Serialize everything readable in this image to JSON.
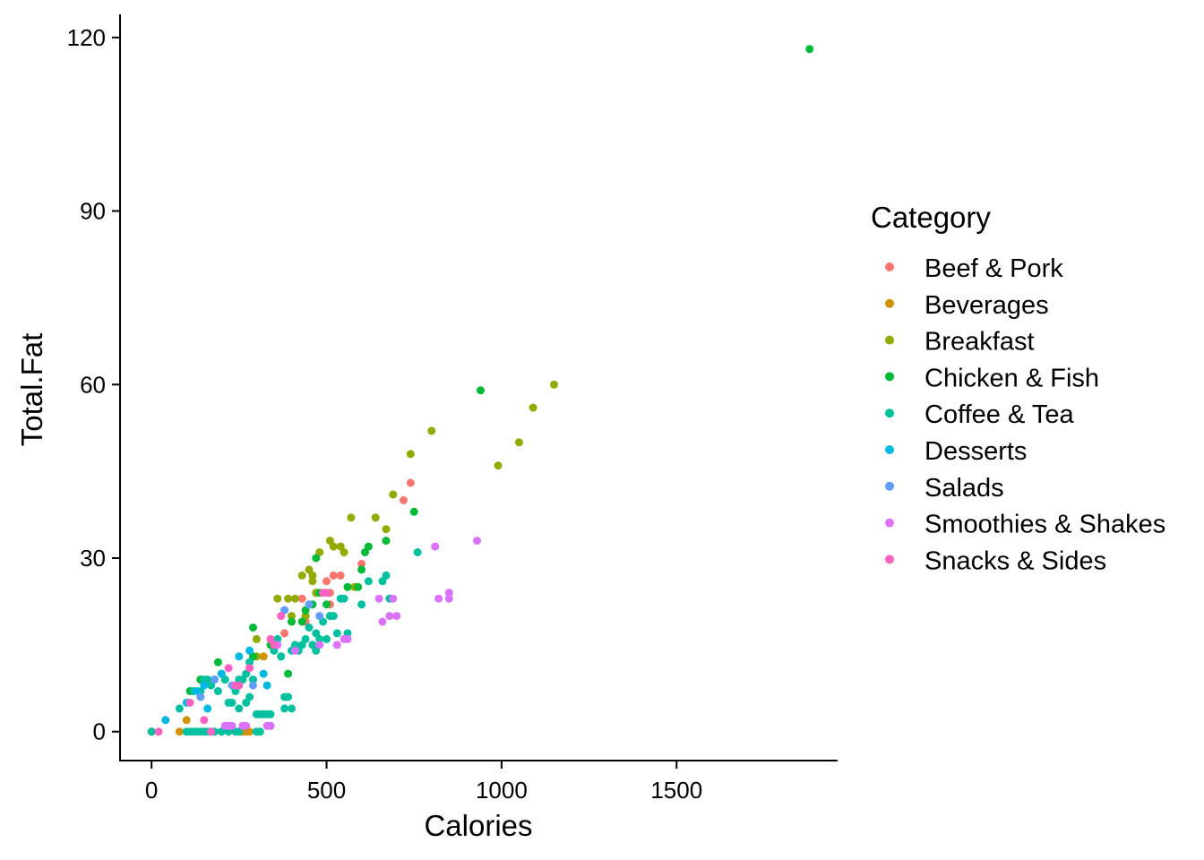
{
  "chart_data": {
    "type": "scatter",
    "xlabel": "Calories",
    "ylabel": "Total.Fat",
    "xlim": [
      -90,
      1960
    ],
    "ylim": [
      -5,
      124
    ],
    "x_ticks": [
      0,
      500,
      1000,
      1500
    ],
    "y_ticks": [
      0,
      30,
      60,
      90,
      120
    ],
    "grid": false,
    "legend": {
      "title": "Category",
      "position": "right"
    },
    "series": [
      {
        "name": "Beef & Pork",
        "color": "#F8766D",
        "points": [
          [
            430,
            23
          ],
          [
            470,
            24
          ],
          [
            500,
            26
          ],
          [
            510,
            24
          ],
          [
            520,
            27
          ],
          [
            540,
            27
          ],
          [
            600,
            29
          ],
          [
            720,
            40
          ],
          [
            740,
            43
          ],
          [
            440,
            19
          ],
          [
            510,
            22
          ],
          [
            380,
            17
          ]
        ]
      },
      {
        "name": "Beverages",
        "color": "#D39200",
        "points": [
          [
            0,
            0
          ],
          [
            80,
            0
          ],
          [
            100,
            2
          ],
          [
            140,
            9
          ],
          [
            150,
            0
          ],
          [
            200,
            0
          ],
          [
            260,
            0
          ],
          [
            270,
            0
          ],
          [
            280,
            0
          ],
          [
            320,
            13
          ]
        ]
      },
      {
        "name": "Breakfast",
        "color": "#93AA00",
        "points": [
          [
            300,
            13
          ],
          [
            360,
            23
          ],
          [
            390,
            23
          ],
          [
            400,
            20
          ],
          [
            430,
            27
          ],
          [
            440,
            20
          ],
          [
            450,
            28
          ],
          [
            460,
            26
          ],
          [
            470,
            24
          ],
          [
            480,
            31
          ],
          [
            510,
            33
          ],
          [
            520,
            32
          ],
          [
            540,
            32
          ],
          [
            550,
            31
          ],
          [
            570,
            37
          ],
          [
            580,
            25
          ],
          [
            640,
            37
          ],
          [
            670,
            35
          ],
          [
            690,
            41
          ],
          [
            740,
            48
          ],
          [
            800,
            52
          ],
          [
            990,
            46
          ],
          [
            1050,
            50
          ],
          [
            1090,
            56
          ],
          [
            1150,
            60
          ],
          [
            300,
            16
          ],
          [
            410,
            23
          ],
          [
            460,
            27
          ]
        ]
      },
      {
        "name": "Chicken & Fish",
        "color": "#00BA38",
        "points": [
          [
            1880,
            118
          ],
          [
            940,
            59
          ],
          [
            750,
            38
          ],
          [
            670,
            33
          ],
          [
            620,
            32
          ],
          [
            610,
            31
          ],
          [
            600,
            28
          ],
          [
            590,
            25
          ],
          [
            560,
            25
          ],
          [
            510,
            20
          ],
          [
            500,
            22
          ],
          [
            480,
            24
          ],
          [
            470,
            30
          ],
          [
            460,
            22
          ],
          [
            440,
            21
          ],
          [
            430,
            19
          ],
          [
            400,
            19
          ],
          [
            390,
            10
          ],
          [
            370,
            13
          ],
          [
            340,
            15
          ],
          [
            290,
            18
          ],
          [
            290,
            13
          ],
          [
            190,
            12
          ],
          [
            140,
            9
          ],
          [
            110,
            7
          ]
        ]
      },
      {
        "name": "Coffee & Tea",
        "color": "#00C19F",
        "points": [
          [
            0,
            0
          ],
          [
            80,
            4
          ],
          [
            100,
            0
          ],
          [
            110,
            0
          ],
          [
            120,
            0
          ],
          [
            130,
            0
          ],
          [
            140,
            0
          ],
          [
            150,
            0
          ],
          [
            160,
            0
          ],
          [
            170,
            0
          ],
          [
            180,
            0
          ],
          [
            200,
            0
          ],
          [
            220,
            0
          ],
          [
            240,
            0
          ],
          [
            250,
            0
          ],
          [
            300,
            0
          ],
          [
            310,
            0
          ],
          [
            340,
            1
          ],
          [
            120,
            7
          ],
          [
            140,
            7
          ],
          [
            150,
            9
          ],
          [
            160,
            9
          ],
          [
            170,
            8
          ],
          [
            180,
            9
          ],
          [
            190,
            7
          ],
          [
            200,
            10
          ],
          [
            210,
            9
          ],
          [
            220,
            5
          ],
          [
            230,
            5
          ],
          [
            240,
            7
          ],
          [
            250,
            9
          ],
          [
            260,
            9
          ],
          [
            270,
            10
          ],
          [
            280,
            12
          ],
          [
            290,
            9
          ],
          [
            300,
            3
          ],
          [
            310,
            3
          ],
          [
            320,
            3
          ],
          [
            330,
            3
          ],
          [
            340,
            3
          ],
          [
            350,
            14
          ],
          [
            360,
            16
          ],
          [
            370,
            13
          ],
          [
            380,
            4
          ],
          [
            390,
            6
          ],
          [
            400,
            4
          ],
          [
            410,
            15
          ],
          [
            420,
            14
          ],
          [
            430,
            15
          ],
          [
            440,
            16
          ],
          [
            450,
            18
          ],
          [
            460,
            15
          ],
          [
            470,
            17
          ],
          [
            480,
            16
          ],
          [
            490,
            19
          ],
          [
            500,
            16
          ],
          [
            510,
            20
          ],
          [
            520,
            20
          ],
          [
            530,
            17
          ],
          [
            540,
            23
          ],
          [
            550,
            23
          ],
          [
            560,
            17
          ],
          [
            600,
            22
          ],
          [
            620,
            26
          ],
          [
            660,
            26
          ],
          [
            670,
            27
          ],
          [
            680,
            23
          ],
          [
            760,
            31
          ],
          [
            250,
            4
          ],
          [
            270,
            5
          ],
          [
            280,
            6
          ],
          [
            380,
            6
          ],
          [
            400,
            14
          ],
          [
            470,
            14
          ]
        ]
      },
      {
        "name": "Desserts",
        "color": "#00B9E3",
        "points": [
          [
            40,
            2
          ],
          [
            100,
            5
          ],
          [
            130,
            7
          ],
          [
            150,
            8
          ],
          [
            160,
            4
          ],
          [
            200,
            10
          ],
          [
            250,
            13
          ],
          [
            280,
            14
          ],
          [
            320,
            10
          ],
          [
            330,
            8
          ]
        ]
      },
      {
        "name": "Salads",
        "color": "#619CFF",
        "points": [
          [
            140,
            6
          ],
          [
            180,
            9
          ],
          [
            230,
            8
          ],
          [
            290,
            8
          ],
          [
            380,
            21
          ],
          [
            450,
            22
          ],
          [
            480,
            20
          ]
        ]
      },
      {
        "name": "Smoothies & Shakes",
        "color": "#DB72FB",
        "points": [
          [
            210,
            1
          ],
          [
            220,
            1
          ],
          [
            230,
            1
          ],
          [
            260,
            1
          ],
          [
            270,
            1
          ],
          [
            330,
            1
          ],
          [
            340,
            1
          ],
          [
            360,
            15
          ],
          [
            410,
            14
          ],
          [
            480,
            15
          ],
          [
            530,
            15
          ],
          [
            550,
            16
          ],
          [
            560,
            16
          ],
          [
            650,
            23
          ],
          [
            660,
            19
          ],
          [
            680,
            20
          ],
          [
            690,
            23
          ],
          [
            700,
            20
          ],
          [
            820,
            23
          ],
          [
            850,
            23
          ],
          [
            850,
            24
          ],
          [
            930,
            33
          ],
          [
            810,
            32
          ]
        ]
      },
      {
        "name": "Snacks & Sides",
        "color": "#FF61C3",
        "points": [
          [
            20,
            0
          ],
          [
            110,
            5
          ],
          [
            150,
            2
          ],
          [
            170,
            0
          ],
          [
            220,
            11
          ],
          [
            240,
            8
          ],
          [
            250,
            8
          ],
          [
            280,
            11
          ],
          [
            340,
            16
          ],
          [
            350,
            15
          ],
          [
            370,
            20
          ],
          [
            490,
            24
          ],
          [
            500,
            24
          ]
        ]
      }
    ]
  }
}
